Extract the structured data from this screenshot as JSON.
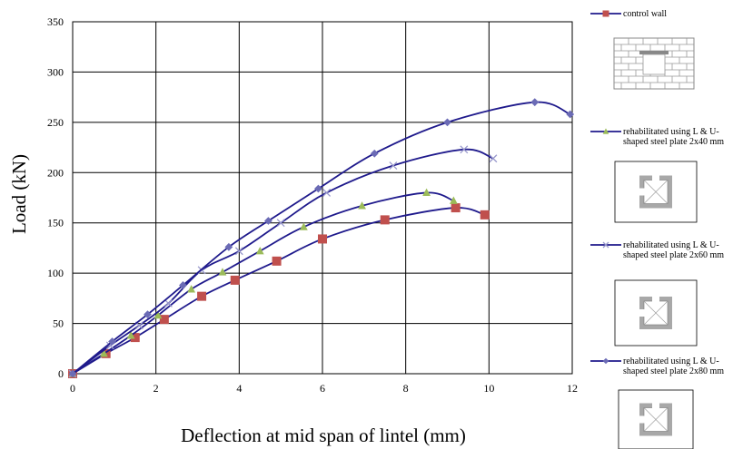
{
  "chart_data": {
    "type": "line",
    "title": "",
    "xlabel": "Deflection at mid span of lintel (mm)",
    "ylabel": "Load (kN)",
    "xlim": [
      0,
      12
    ],
    "ylim": [
      0,
      350
    ],
    "xticks": [
      "0",
      "2",
      "4",
      "6",
      "8",
      "10",
      "12"
    ],
    "yticks": [
      "0",
      "50",
      "100",
      "150",
      "200",
      "250",
      "300",
      "350"
    ],
    "grid": true,
    "legend_position": "right",
    "series": [
      {
        "name_lines": [
          "control wall"
        ],
        "marker": "square",
        "line_color": "#1f1a8c",
        "marker_color": "#c0504d",
        "points": [
          [
            0,
            0
          ],
          [
            0.8,
            20
          ],
          [
            1.5,
            36
          ],
          [
            2.2,
            54
          ],
          [
            3.1,
            77
          ],
          [
            3.9,
            93
          ],
          [
            4.9,
            112
          ],
          [
            6.0,
            134
          ],
          [
            7.5,
            153
          ],
          [
            9.2,
            165
          ],
          [
            9.9,
            158
          ]
        ]
      },
      {
        "name_lines": [
          "rehabilitated using L & U-",
          "shaped steel plate 2x40 mm"
        ],
        "marker": "triangle",
        "line_color": "#1f1a8c",
        "marker_color": "#9bbb59",
        "points": [
          [
            0,
            0
          ],
          [
            0.75,
            20
          ],
          [
            1.4,
            38
          ],
          [
            2.05,
            58
          ],
          [
            2.85,
            84
          ],
          [
            3.6,
            101
          ],
          [
            4.5,
            122
          ],
          [
            5.55,
            146
          ],
          [
            6.95,
            167
          ],
          [
            8.5,
            180
          ],
          [
            9.15,
            172
          ]
        ]
      },
      {
        "name_lines": [
          "rehabilitated using L & U-",
          "shaped steel plate 2x60 mm"
        ],
        "marker": "cross",
        "line_color": "#1f1a8c",
        "marker_color": "#9999cc",
        "points": [
          [
            0,
            0
          ],
          [
            0.9,
            28
          ],
          [
            1.6,
            48
          ],
          [
            2.3,
            70
          ],
          [
            3.1,
            103
          ],
          [
            4.0,
            122
          ],
          [
            5.0,
            150
          ],
          [
            6.1,
            180
          ],
          [
            7.7,
            207
          ],
          [
            9.4,
            223
          ],
          [
            10.1,
            214
          ]
        ]
      },
      {
        "name_lines": [
          "rehabilitated using L & U-",
          "shaped steel plate 2x80 mm"
        ],
        "marker": "diamond",
        "line_color": "#1f1a8c",
        "marker_color": "#6b6bb5",
        "points": [
          [
            0,
            0
          ],
          [
            0.95,
            32
          ],
          [
            1.8,
            59
          ],
          [
            2.65,
            88
          ],
          [
            3.75,
            126
          ],
          [
            4.7,
            152
          ],
          [
            5.9,
            184
          ],
          [
            7.25,
            219
          ],
          [
            9.0,
            250
          ],
          [
            11.1,
            270
          ],
          [
            11.95,
            258
          ]
        ]
      }
    ]
  }
}
